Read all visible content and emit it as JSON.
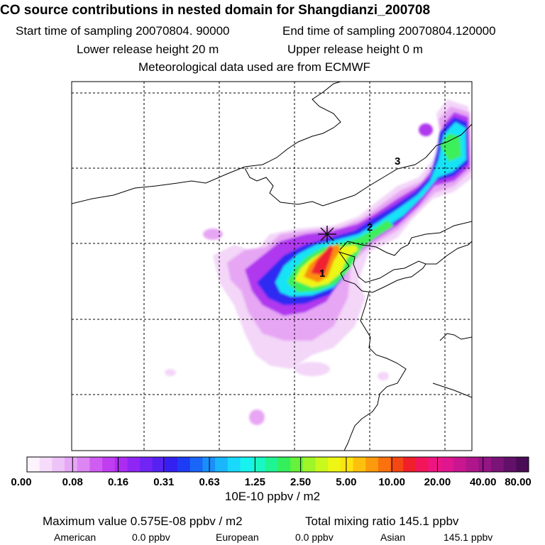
{
  "header": {
    "title": "CO  source contributions in nested domain for Shangdianzi_200708",
    "start_sampling": "Start time of sampling 20070804. 90000",
    "end_sampling": "End time of sampling 20070804.120000",
    "lower_release": "Lower release height   20 m",
    "upper_release": "Upper release height    0 m",
    "meteo": "Meteorological data used are from ECMWF"
  },
  "chart_data": {
    "type": "heatmap",
    "title": "CO  source contributions in nested domain for Shangdianzi_200708",
    "colorbar_label": "10E-10 ppbv / m2",
    "colorbar_ticks": [
      "0.00",
      "0.08",
      "0.16",
      "0.31",
      "0.63",
      "1.25",
      "2.50",
      "5.00",
      "10.00",
      "20.00",
      "40.00",
      "80.00"
    ],
    "colorbar_colors": [
      "#fdf3fd",
      "#f6dcfa",
      "#eec3f8",
      "#e6a7f6",
      "#dd86f3",
      "#cf5df1",
      "#c03ef0",
      "#ab2cf2",
      "#8f26f4",
      "#7124f3",
      "#5522f1",
      "#3420f0",
      "#1e3cf4",
      "#1a66f8",
      "#1a8ffb",
      "#1ab6fc",
      "#19d9fc",
      "#17f2ee",
      "#19f7c3",
      "#1ff492",
      "#34ef5c",
      "#66f23a",
      "#9ef628",
      "#c9f81d",
      "#eef613",
      "#fde40f",
      "#fdc10d",
      "#fb9a0c",
      "#f9720d",
      "#f54713",
      "#f01f2a",
      "#f2155a",
      "#ee1583",
      "#e0168f",
      "#c91690",
      "#b0168c",
      "#951585",
      "#7b1379",
      "#62106a",
      "#4a0c56"
    ],
    "markers": [
      "1",
      "2",
      "3"
    ],
    "source_marker": "receptor (cross)",
    "maximum_value": "0.575E-08 ppbv / m2",
    "total_mixing_ratio": "145.1 ppbv",
    "contributions": [
      {
        "name": "American",
        "value": "0.0 ppbv"
      },
      {
        "name": "European",
        "value": "0.0 ppbv"
      },
      {
        "name": "Asian",
        "value": "145.1 ppbv"
      }
    ]
  },
  "footer": {
    "max_label": "Maximum value  0.575E-08 ppbv / m2",
    "total_label": "Total mixing ratio      145.1 ppbv"
  }
}
